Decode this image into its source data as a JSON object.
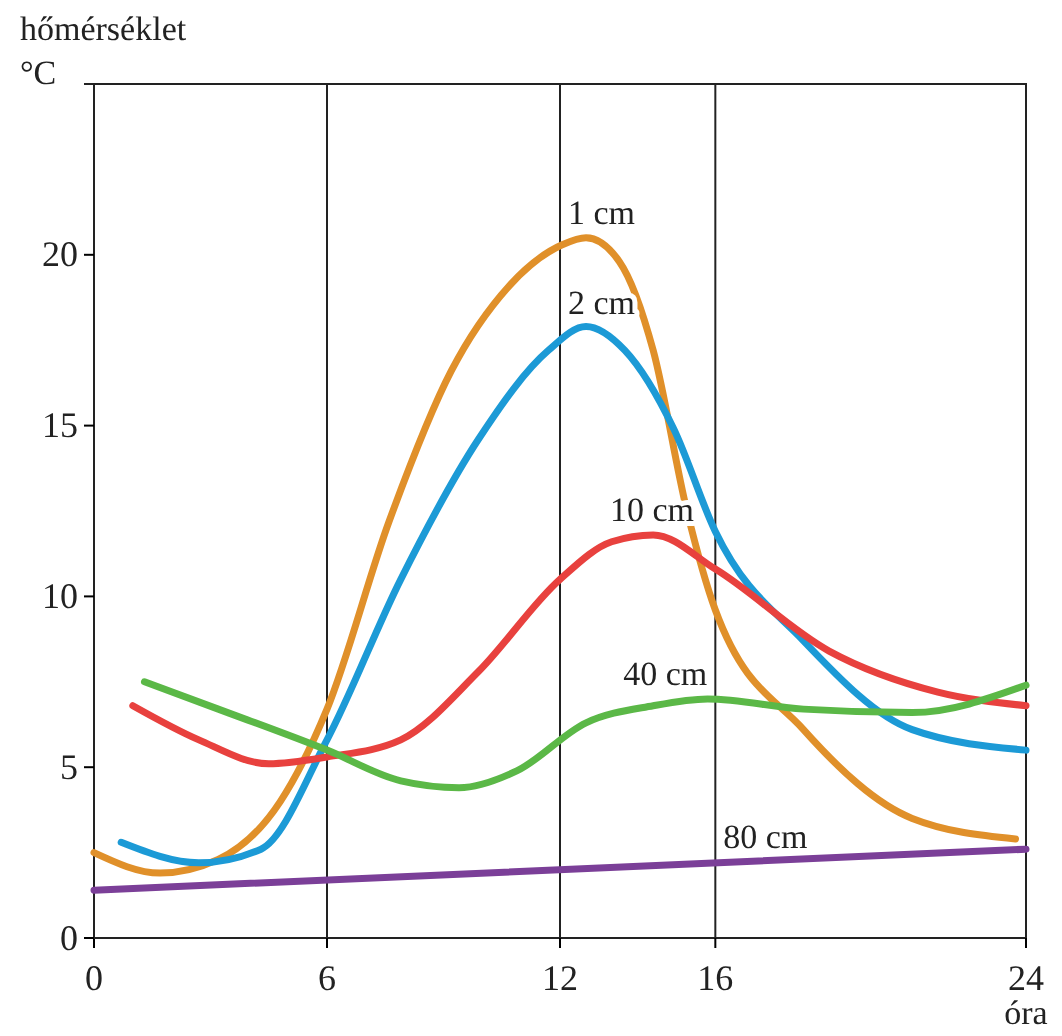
{
  "chart_data": {
    "type": "line",
    "ylabel": "hőmérséklet °C",
    "xlabel": "óra",
    "xlim": [
      0,
      24
    ],
    "ylim": [
      0,
      25
    ],
    "xticks": [
      0,
      6,
      12,
      16,
      24
    ],
    "yticks": [
      0,
      5,
      10,
      15,
      20
    ],
    "grid": "x",
    "marker": "none",
    "line_style": "solid",
    "series": [
      {
        "name": "1 cm",
        "color": "#e0902a",
        "x": [
          0,
          1.7,
          3.2,
          4.8,
          6,
          7.6,
          9.2,
          10.7,
          12.07,
          12.67,
          13.53,
          14.4,
          15.27,
          16,
          18.27,
          21.07,
          23.73
        ],
        "values": [
          2.5,
          1.9,
          2.3,
          4,
          6.7,
          12.2,
          16.6,
          19.1,
          20.3,
          20.5,
          19.8,
          17.2,
          12.5,
          9.6,
          6.1,
          3.5,
          2.9
        ]
      },
      {
        "name": "2 cm",
        "color": "#1c9ad6",
        "x": [
          0.7,
          2.7,
          4.3,
          6,
          7.9,
          9.9,
          11.7,
          12.67,
          13.67,
          14.93,
          16,
          18.27,
          21.07,
          24
        ],
        "values": [
          2.8,
          2.2,
          2.6,
          5.8,
          10.5,
          14.6,
          17.2,
          17.9,
          17.2,
          14.9,
          11.9,
          8.7,
          6.1,
          5.5
        ]
      },
      {
        "name": "10 cm",
        "color": "#e8413e",
        "x": [
          1,
          2.7,
          4.5,
          6,
          7.9,
          9.9,
          12,
          13.33,
          14.4,
          16,
          18.93,
          21.73,
          24
        ],
        "values": [
          6.8,
          5.8,
          5.1,
          5.3,
          5.8,
          7.8,
          10.5,
          11.6,
          11.8,
          10.8,
          8.4,
          7.2,
          6.8
        ]
      },
      {
        "name": "40 cm",
        "color": "#5bb847",
        "x": [
          1.3,
          3.2,
          6,
          7.9,
          9.4,
          10.9,
          12.67,
          14.4,
          15.8,
          18.27,
          21.07,
          24
        ],
        "values": [
          7.5,
          6.7,
          5.5,
          4.6,
          4.4,
          4.9,
          6.3,
          6.8,
          7,
          6.7,
          6.6,
          7.4
        ]
      },
      {
        "name": "80 cm",
        "color": "#7b3f98",
        "x": [
          0,
          24
        ],
        "values": [
          1.4,
          2.6
        ]
      }
    ]
  }
}
